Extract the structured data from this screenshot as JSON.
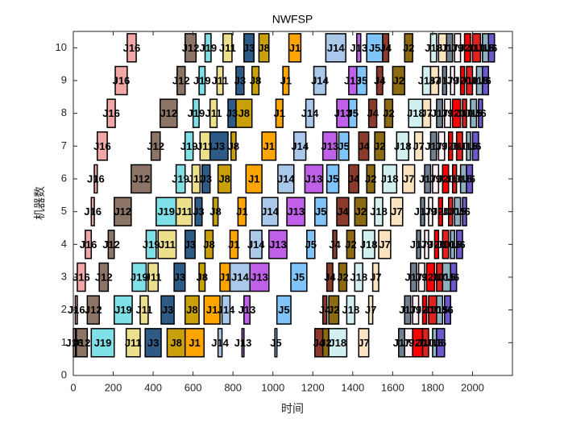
{
  "chart_data": {
    "type": "gantt",
    "title": "NWFSP",
    "xlabel": "时间",
    "ylabel": "机器数",
    "xlim": [
      0,
      2200
    ],
    "ylim": [
      0,
      10.5
    ],
    "xticks": [
      0,
      200,
      400,
      600,
      800,
      1000,
      1200,
      1400,
      1600,
      1800,
      2000
    ],
    "yticks": [
      0,
      1,
      2,
      3,
      4,
      5,
      6,
      7,
      8,
      9,
      10
    ],
    "machines": [
      1,
      2,
      3,
      4,
      5,
      6,
      7,
      8,
      9,
      10
    ],
    "series": [
      {
        "name": "J16",
        "color": "#f2a7a7",
        "start": 0,
        "durations": [
          10,
          10,
          40,
          30,
          15,
          15,
          50,
          40,
          60,
          45
        ]
      },
      {
        "name": "J12",
        "color": "#8c7466",
        "start": 15,
        "durations": [
          55,
          60,
          45,
          30,
          85,
          100,
          45,
          85,
          40,
          55
        ]
      },
      {
        "name": "J19",
        "color": "#80e0e8",
        "start": 90,
        "durations": [
          115,
          90,
          70,
          50,
          100,
          45,
          40,
          30,
          30,
          30
        ]
      },
      {
        "name": "J11",
        "color": "#ede08c",
        "start": 265,
        "durations": [
          70,
          40,
          50,
          90,
          80,
          40,
          50,
          35,
          30,
          45
        ]
      },
      {
        "name": "J3",
        "color": "#2e5b86",
        "start": 360,
        "durations": [
          80,
          65,
          55,
          50,
          35,
          40,
          90,
          40,
          40,
          50
        ]
      },
      {
        "name": "J8",
        "color": "#c9a00a",
        "start": 470,
        "durations": [
          90,
          70,
          30,
          40,
          25,
          65,
          25,
          80,
          35,
          50
        ]
      },
      {
        "name": "J1",
        "color": "#ffa500",
        "start": 560,
        "durations": [
          95,
          80,
          50,
          40,
          40,
          80,
          70,
          35,
          30,
          60
        ]
      },
      {
        "name": "J14",
        "color": "#aac8ea",
        "start": 725,
        "durations": [
          20,
          40,
          100,
          60,
          80,
          80,
          60,
          40,
          60,
          100
        ]
      },
      {
        "name": "J13",
        "color": "#c060e8",
        "start": 845,
        "durations": [
          10,
          30,
          95,
          90,
          90,
          90,
          70,
          60,
          40,
          20
        ]
      },
      {
        "name": "J5",
        "color": "#80c4fa",
        "start": 1010,
        "durations": [
          10,
          70,
          80,
          40,
          60,
          60,
          50,
          40,
          50,
          80
        ]
      },
      {
        "name": "J4",
        "color": "#8b3b2b",
        "start": 1210,
        "durations": [
          40,
          20,
          30,
          20,
          60,
          50,
          50,
          40,
          30,
          30
        ]
      },
      {
        "name": "J2",
        "color": "#8b6a12",
        "start": 1250,
        "durations": [
          30,
          50,
          40,
          40,
          60,
          40,
          50,
          40,
          60,
          40
        ]
      },
      {
        "name": "J18",
        "color": "#d2f0f0",
        "start": 1280,
        "durations": [
          90,
          40,
          40,
          60,
          40,
          70,
          60,
          70,
          40,
          30
        ]
      },
      {
        "name": "J7",
        "color": "#fde4c0",
        "start": 1430,
        "durations": [
          50,
          20,
          30,
          60,
          60,
          60,
          40,
          40,
          40,
          40
        ]
      },
      {
        "name": "J17",
        "color": "#6f7f90",
        "start": 1630,
        "durations": [
          30,
          30,
          30,
          20,
          20,
          30,
          30,
          30,
          20,
          30
        ]
      },
      {
        "name": "J9",
        "color": "#fff0f5",
        "start": 1660,
        "durations": [
          40,
          30,
          30,
          20,
          20,
          30,
          30,
          30,
          20,
          30
        ]
      },
      {
        "name": "J20",
        "color": "#ff0000",
        "start": 1700,
        "durations": [
          50,
          20,
          40,
          20,
          20,
          30,
          20,
          40,
          20,
          30
        ]
      },
      {
        "name": "J10",
        "color": "#e22020",
        "start": 1750,
        "durations": [
          30,
          40,
          30,
          30,
          20,
          20,
          30,
          20,
          30,
          40
        ]
      },
      {
        "name": "J15",
        "color": "#8fb0c0",
        "start": 1800,
        "durations": [
          20,
          30,
          40,
          20,
          30,
          30,
          20,
          30,
          30,
          30
        ]
      },
      {
        "name": "J6",
        "color": "#6a5acd",
        "start": 1820,
        "durations": [
          40,
          30,
          30,
          30,
          20,
          30,
          30,
          20,
          30,
          30
        ]
      }
    ]
  }
}
